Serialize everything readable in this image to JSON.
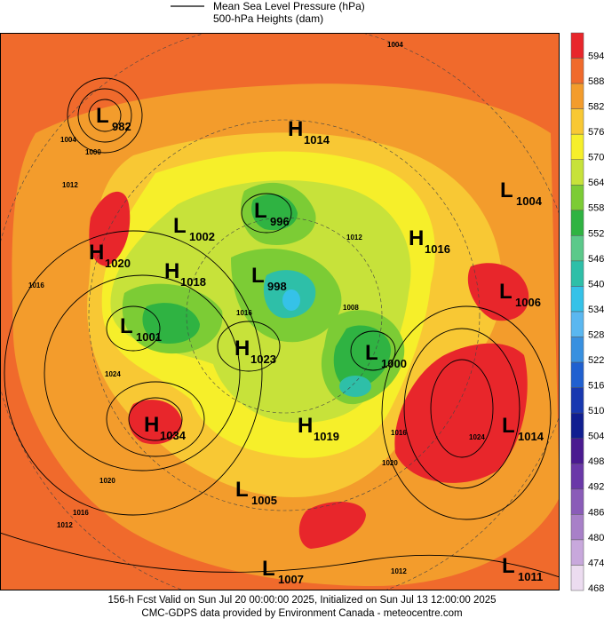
{
  "header": {
    "line_label": "Mean Sea Level Pressure (hPa)",
    "fill_label": "500-hPa Heights (dam)"
  },
  "colorbar": {
    "levels": [
      594,
      588,
      582,
      576,
      570,
      564,
      558,
      552,
      546,
      540,
      534,
      528,
      522,
      516,
      510,
      504,
      498,
      492,
      486,
      480,
      474,
      468
    ],
    "colors": [
      "#e8262b",
      "#f06a2c",
      "#f39c2c",
      "#f8c834",
      "#f6ef2a",
      "#c7e23a",
      "#7ccc35",
      "#2fb342",
      "#5bc98a",
      "#2ebfa8",
      "#35c2e8",
      "#5ab7f0",
      "#3890e0",
      "#2060d0",
      "#1838b0",
      "#101e90",
      "#4a1a90",
      "#6a38a8",
      "#8a5cb8",
      "#a880c8",
      "#c8a8dc",
      "#ecdcf0"
    ]
  },
  "pressure_centers": [
    {
      "letter": "L",
      "value": 982
    },
    {
      "letter": "H",
      "value": 1014
    },
    {
      "letter": "L",
      "value": 1004
    },
    {
      "letter": "L",
      "value": 996
    },
    {
      "letter": "L",
      "value": 1002
    },
    {
      "letter": "H",
      "value": 1016
    },
    {
      "letter": "H",
      "value": 1020
    },
    {
      "letter": "H",
      "value": 1018
    },
    {
      "letter": "L",
      "value": 998
    },
    {
      "letter": "L",
      "value": 1006
    },
    {
      "letter": "L",
      "value": 1001
    },
    {
      "letter": "H",
      "value": 1023
    },
    {
      "letter": "L",
      "value": 1000
    },
    {
      "letter": "H",
      "value": 1034
    },
    {
      "letter": "H",
      "value": 1019
    },
    {
      "letter": "L",
      "value": 1014
    },
    {
      "letter": "L",
      "value": 1005
    },
    {
      "letter": "L",
      "value": 1007
    },
    {
      "letter": "L",
      "value": 1011
    }
  ],
  "isobar_labels": [
    1004,
    1004,
    1000,
    1012,
    1016,
    1024,
    1020,
    1016,
    1012,
    1012,
    1008,
    1016,
    1016,
    1020,
    1024,
    1012
  ],
  "footer": {
    "line1": "156-h Fcst Valid on Sun Jul 20 00:00:00 2025, Initialized on Sun Jul 13 12:00:00 2025",
    "line2": "CMC-GDPS data provided by Environment Canada - meteocentre.com"
  }
}
